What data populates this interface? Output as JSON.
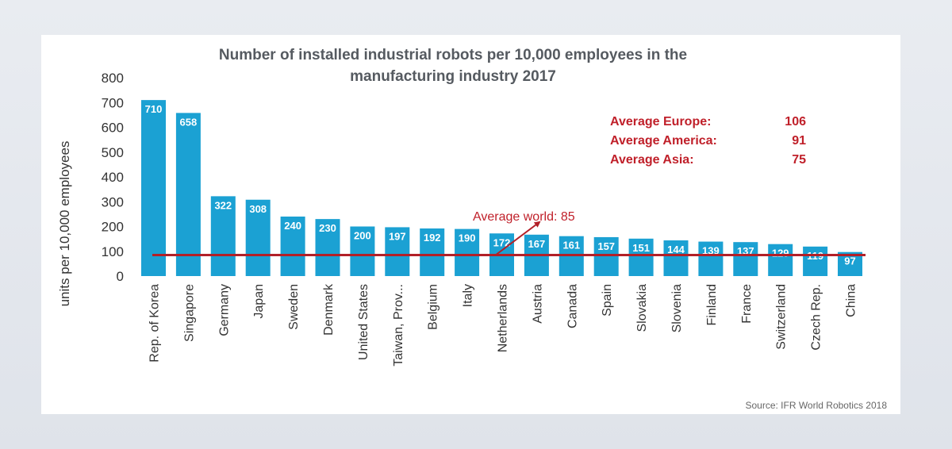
{
  "chart_data": {
    "type": "bar",
    "title_lines": [
      "Number of installed industrial robots per 10,000 employees in the",
      "manufacturing industry 2017"
    ],
    "ylabel": "units per 10,000 employees",
    "xlabel": "",
    "ylim": [
      0,
      800
    ],
    "yticks": [
      0,
      100,
      200,
      300,
      400,
      500,
      600,
      700,
      800
    ],
    "categories": [
      "Rep. of Korea",
      "Singapore",
      "Germany",
      "Japan",
      "Sweden",
      "Denmark",
      "United States",
      "Taiwan, Prov...",
      "Belgium",
      "Italy",
      "Netherlands",
      "Austria",
      "Canada",
      "Spain",
      "Slovakia",
      "Slovenia",
      "Finland",
      "France",
      "Switzerland",
      "Czech Rep.",
      "China"
    ],
    "values": [
      710,
      658,
      322,
      308,
      240,
      230,
      200,
      197,
      192,
      190,
      172,
      167,
      161,
      157,
      151,
      144,
      139,
      137,
      129,
      119,
      97
    ],
    "bar_color": "#1ba1d3",
    "reference_line": {
      "label": "Average world: 85",
      "value": 85,
      "color": "#b22028"
    },
    "averages": [
      {
        "label": "Average Europe:",
        "value": "106"
      },
      {
        "label": "Average America:",
        "value": "91"
      },
      {
        "label": "Average Asia:",
        "value": "75"
      }
    ],
    "grid": false,
    "legend": "none"
  },
  "source": "Source: IFR World Robotics 2018"
}
